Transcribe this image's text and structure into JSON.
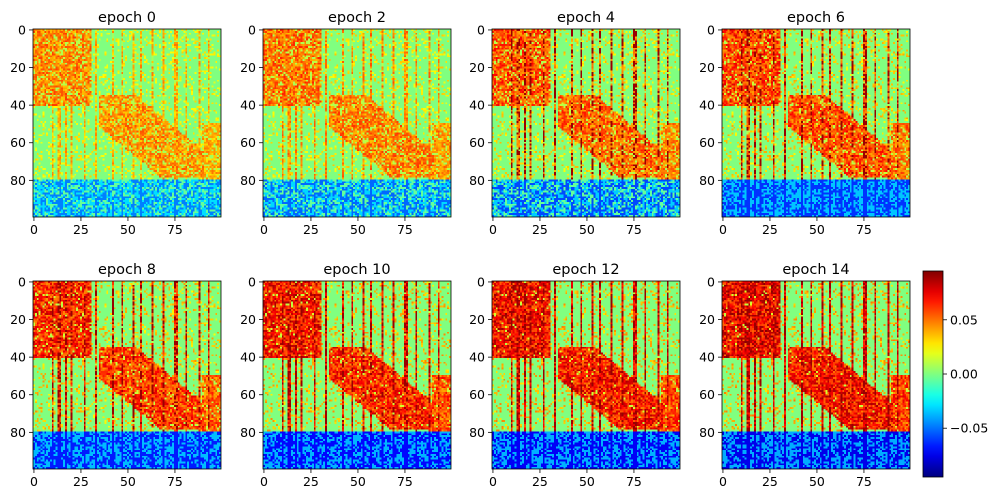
{
  "chart_data": {
    "type": "heatmap",
    "colormap": "jet",
    "grid": false,
    "matrix_size": [
      100,
      100
    ],
    "axis_extent": {
      "x": [
        0,
        99
      ],
      "y": [
        0,
        99
      ]
    },
    "x_ticks": [
      "0",
      "25",
      "50",
      "75"
    ],
    "y_ticks": [
      "0",
      "20",
      "40",
      "60",
      "80"
    ],
    "color_range": [
      -0.095,
      0.095
    ],
    "colorbar": {
      "placement": "right",
      "ticks": [
        {
          "value": 0.05,
          "label": "0.05"
        },
        {
          "value": 0.0,
          "label": "0.00"
        },
        {
          "value": -0.05,
          "label": "−0.05"
        }
      ]
    },
    "panels": [
      {
        "title": "epoch 0",
        "epoch": 0,
        "intensity": 0.5
      },
      {
        "title": "epoch 2",
        "epoch": 2,
        "intensity": 0.58
      },
      {
        "title": "epoch 4",
        "epoch": 4,
        "intensity": 0.68
      },
      {
        "title": "epoch 6",
        "epoch": 6,
        "intensity": 0.76
      },
      {
        "title": "epoch 8",
        "epoch": 8,
        "intensity": 0.84
      },
      {
        "title": "epoch 10",
        "epoch": 10,
        "intensity": 0.91
      },
      {
        "title": "epoch 12",
        "epoch": 12,
        "intensity": 0.96
      },
      {
        "title": "epoch 14",
        "epoch": 14,
        "intensity": 1.0
      }
    ],
    "structure": {
      "negative_rows_start": 80,
      "negative_rows_end": 99,
      "positive_block_top_left": {
        "rows": [
          0,
          40
        ],
        "cols": [
          0,
          30
        ]
      },
      "positive_diagonal_band": {
        "rows": [
          35,
          78
        ],
        "cols": [
          35,
          90
        ]
      },
      "positive_right_edge": {
        "rows": [
          50,
          80
        ],
        "cols": [
          90,
          99
        ]
      },
      "strong_columns": [
        10,
        13,
        14,
        17,
        20,
        27,
        33,
        42,
        47,
        53,
        57,
        63,
        69,
        75,
        76,
        81,
        88,
        93
      ]
    }
  }
}
